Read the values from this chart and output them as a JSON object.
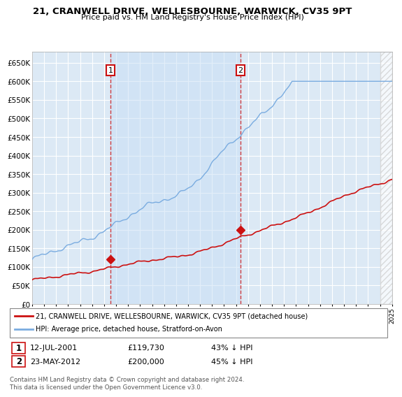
{
  "title": "21, CRANWELL DRIVE, WELLESBOURNE, WARWICK, CV35 9PT",
  "subtitle": "Price paid vs. HM Land Registry's House Price Index (HPI)",
  "hpi_label": "HPI: Average price, detached house, Stratford-on-Avon",
  "price_label": "21, CRANWELL DRIVE, WELLESBOURNE, WARWICK, CV35 9PT (detached house)",
  "hpi_color": "#7aace0",
  "price_color": "#cc1111",
  "annotation1_date": "12-JUL-2001",
  "annotation1_price": "£119,730",
  "annotation1_hpi": "43% ↓ HPI",
  "annotation2_date": "23-MAY-2012",
  "annotation2_price": "£200,000",
  "annotation2_hpi": "45% ↓ HPI",
  "footer": "Contains HM Land Registry data © Crown copyright and database right 2024.\nThis data is licensed under the Open Government Licence v3.0.",
  "bg_color": "#dce9f5",
  "hatch_color": "#cccccc",
  "grid_color": "#ffffff",
  "ylim_max": 650000,
  "sale1_year": 2001.54,
  "sale1_price": 119730,
  "sale2_year": 2012.37,
  "sale2_price": 200000,
  "cutoff_year": 2024.0
}
